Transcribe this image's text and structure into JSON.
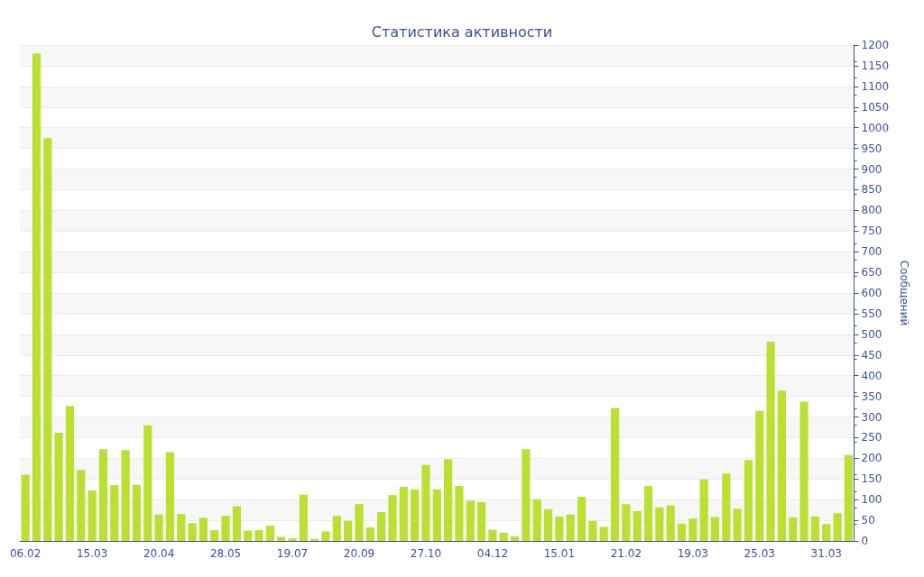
{
  "chart_data": {
    "type": "bar",
    "title": "Статистика активности",
    "ylabel": "Сообщений",
    "categories": [
      "06.02",
      null,
      null,
      null,
      null,
      null,
      "15.03",
      null,
      null,
      null,
      null,
      null,
      "20.04",
      null,
      null,
      null,
      null,
      null,
      "28.05",
      null,
      null,
      null,
      null,
      null,
      "19.07",
      null,
      null,
      null,
      null,
      null,
      "20.09",
      null,
      null,
      null,
      null,
      null,
      "27.10",
      null,
      null,
      null,
      null,
      null,
      "04.12",
      null,
      null,
      null,
      null,
      null,
      "15.01",
      null,
      null,
      null,
      null,
      null,
      "21.02",
      null,
      null,
      null,
      null,
      null,
      "19.03",
      null,
      null,
      null,
      null,
      null,
      "25.03",
      null,
      null,
      null,
      null,
      null,
      "31.03",
      null,
      null
    ],
    "values": [
      160,
      1180,
      975,
      262,
      327,
      172,
      122,
      222,
      135,
      220,
      136,
      280,
      64,
      215,
      65,
      43,
      56,
      26,
      61,
      84,
      25,
      26,
      37,
      10,
      6,
      112,
      5,
      23,
      61,
      49,
      89,
      33,
      70,
      111,
      131,
      125,
      184,
      125,
      198,
      133,
      97,
      94,
      27,
      20,
      11,
      222,
      101,
      77,
      59,
      64,
      107,
      48,
      34,
      322,
      89,
      72,
      133,
      81,
      86,
      42,
      54,
      149,
      58,
      163,
      78,
      196,
      315,
      482,
      364,
      57,
      337,
      59,
      41,
      67,
      208
    ],
    "color": "#bbe034",
    "ylim": [
      0,
      1200
    ],
    "yticks": [
      0,
      50,
      100,
      150,
      200,
      250,
      300,
      350,
      400,
      450,
      500,
      550,
      600,
      650,
      700,
      750,
      800,
      850,
      900,
      950,
      1000,
      1050,
      1100,
      1150,
      1200
    ],
    "grid": "y"
  }
}
